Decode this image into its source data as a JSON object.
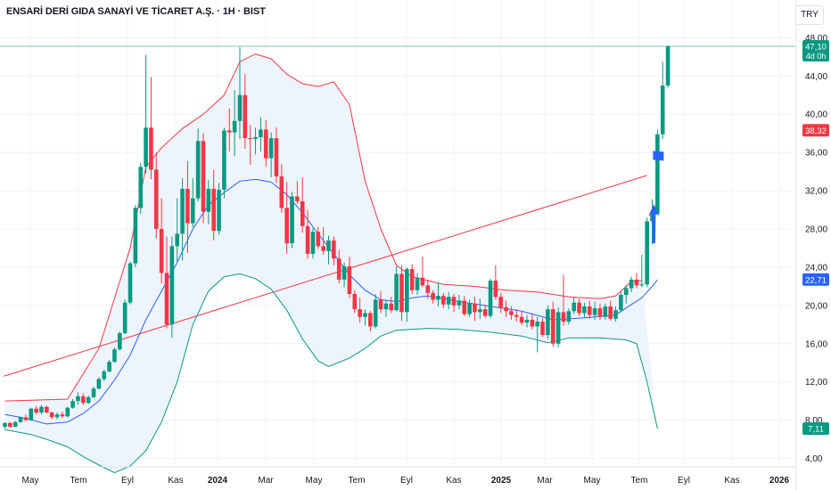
{
  "header": {
    "title": "ENSARİ DERİ GIDA SANAYİ VE TİCARET A.Ş. · 1H · BIST",
    "currency": "TRY"
  },
  "chart_data": {
    "type": "candlestick",
    "x_tick_labels": [
      "May",
      "Tem",
      "Eyl",
      "Kas",
      "2024",
      "Mar",
      "May",
      "Tem",
      "Eyl",
      "Kas",
      "2025",
      "Mar",
      "May",
      "Tem",
      "Eyl",
      "Kas",
      "2026"
    ],
    "y_tick_labels": [
      "4,00",
      "8,00",
      "12,00",
      "16,00",
      "20,00",
      "24,00",
      "28,00",
      "32,00",
      "36,00",
      "40,00",
      "44,00",
      "48,00"
    ],
    "ylim": [
      3,
      49
    ],
    "price_labels": [
      {
        "text": "47,10",
        "sub": "4d 0h",
        "value": 47.1,
        "color": "#089981"
      },
      {
        "text": "38,32",
        "value": 38.32,
        "color": "#f23645"
      },
      {
        "text": "22,71",
        "value": 22.71,
        "color": "#2962ff"
      },
      {
        "text": "7,11",
        "value": 7.11,
        "color": "#089981"
      }
    ],
    "colors": {
      "up": "#089981",
      "down": "#f23645",
      "upper_band": "#f23645",
      "middle_band": "#2962ff",
      "lower_band": "#089981",
      "band_fill": "#eef4fc",
      "trendline": "#f23645",
      "marker": "#2962ff"
    },
    "candles": [
      [
        7.3,
        7.8,
        7.1,
        7.7
      ],
      [
        7.7,
        7.8,
        7.2,
        7.3
      ],
      [
        7.3,
        7.9,
        7.3,
        7.8
      ],
      [
        7.8,
        8.4,
        7.7,
        8.3
      ],
      [
        8.3,
        8.6,
        7.9,
        8.0
      ],
      [
        8.0,
        9.3,
        7.9,
        9.2
      ],
      [
        9.2,
        9.5,
        8.6,
        8.8
      ],
      [
        8.8,
        9.6,
        8.6,
        9.4
      ],
      [
        9.4,
        9.5,
        8.7,
        8.8
      ],
      [
        8.8,
        8.9,
        8.1,
        8.3
      ],
      [
        8.3,
        8.8,
        8.1,
        8.6
      ],
      [
        8.6,
        8.9,
        8.2,
        8.4
      ],
      [
        8.4,
        9.4,
        8.3,
        9.3
      ],
      [
        9.3,
        10.2,
        9.2,
        10.0
      ],
      [
        10.0,
        10.9,
        9.6,
        10.5
      ],
      [
        10.5,
        10.8,
        9.6,
        9.8
      ],
      [
        9.8,
        10.6,
        9.7,
        10.4
      ],
      [
        10.4,
        11.5,
        10.3,
        11.3
      ],
      [
        11.3,
        12.5,
        11.2,
        12.3
      ],
      [
        12.3,
        13.3,
        12.1,
        13.1
      ],
      [
        13.1,
        14.3,
        13.0,
        14.1
      ],
      [
        14.1,
        15.6,
        14.0,
        15.4
      ],
      [
        15.4,
        17.3,
        15.3,
        17.1
      ],
      [
        17.1,
        20.6,
        17.0,
        20.3
      ],
      [
        20.3,
        24.6,
        20.1,
        24.4
      ],
      [
        24.4,
        30.5,
        24.0,
        30.2
      ],
      [
        30.2,
        34.9,
        29.6,
        34.5
      ],
      [
        34.5,
        46.2,
        33.8,
        38.6
      ],
      [
        38.6,
        43.9,
        33.2,
        34.2
      ],
      [
        34.2,
        36.0,
        27.0,
        28.0
      ],
      [
        28.0,
        31.2,
        22.3,
        23.4
      ],
      [
        23.4,
        27.2,
        17.6,
        18.0
      ],
      [
        18.0,
        27.2,
        16.6,
        26.2
      ],
      [
        26.2,
        31.2,
        24.6,
        27.5
      ],
      [
        27.5,
        33.3,
        24.7,
        32.2
      ],
      [
        32.2,
        35.1,
        25.5,
        28.6
      ],
      [
        28.6,
        33.3,
        28.2,
        31.2
      ],
      [
        31.2,
        38.5,
        30.9,
        37.2
      ],
      [
        37.2,
        38.0,
        28.6,
        29.8
      ],
      [
        29.8,
        33.1,
        28.5,
        32.2
      ],
      [
        32.2,
        34.2,
        26.8,
        27.8
      ],
      [
        27.8,
        32.8,
        27.4,
        32.1
      ],
      [
        32.1,
        38.6,
        31.2,
        38.3
      ],
      [
        38.3,
        40.6,
        36.1,
        38.1
      ],
      [
        38.1,
        42.5,
        35.6,
        39.3
      ],
      [
        39.3,
        47.0,
        37.4,
        42.0
      ],
      [
        42.0,
        44.2,
        36.4,
        37.5
      ],
      [
        37.5,
        38.9,
        34.7,
        37.4
      ],
      [
        37.4,
        38.6,
        35.8,
        37.6
      ],
      [
        37.6,
        39.7,
        36.1,
        38.4
      ],
      [
        38.4,
        39.4,
        34.5,
        35.4
      ],
      [
        35.4,
        38.1,
        33.4,
        37.5
      ],
      [
        37.5,
        38.6,
        32.8,
        33.5
      ],
      [
        33.5,
        34.8,
        29.7,
        30.2
      ],
      [
        30.2,
        32.9,
        25.4,
        26.5
      ],
      [
        26.5,
        31.9,
        26.0,
        31.4
      ],
      [
        31.4,
        33.0,
        30.6,
        30.9
      ],
      [
        30.9,
        33.4,
        27.6,
        28.3
      ],
      [
        28.3,
        30.0,
        24.9,
        25.4
      ],
      [
        25.4,
        28.1,
        24.9,
        27.7
      ],
      [
        27.7,
        28.2,
        25.9,
        26.2
      ],
      [
        26.2,
        28.2,
        25.3,
        25.7
      ],
      [
        25.7,
        27.3,
        24.3,
        26.8
      ],
      [
        26.8,
        27.2,
        24.2,
        24.9
      ],
      [
        24.9,
        25.8,
        22.3,
        22.7
      ],
      [
        22.7,
        24.5,
        21.9,
        24.1
      ],
      [
        24.1,
        25.1,
        20.8,
        21.2
      ],
      [
        21.2,
        21.6,
        19.2,
        19.6
      ],
      [
        19.6,
        20.8,
        18.2,
        18.8
      ],
      [
        18.8,
        19.6,
        17.9,
        19.2
      ],
      [
        19.2,
        19.4,
        17.3,
        17.8
      ],
      [
        17.8,
        21.2,
        17.6,
        20.6
      ],
      [
        20.6,
        21.5,
        19.2,
        19.6
      ],
      [
        19.6,
        20.5,
        18.8,
        20.2
      ],
      [
        20.2,
        20.9,
        19.2,
        19.5
      ],
      [
        19.5,
        24.1,
        19.4,
        23.3
      ],
      [
        23.3,
        24.2,
        18.4,
        19.3
      ],
      [
        19.3,
        24.0,
        18.3,
        23.8
      ],
      [
        23.8,
        24.3,
        21.2,
        21.6
      ],
      [
        21.6,
        23.4,
        21.1,
        22.9
      ],
      [
        22.9,
        25.1,
        21.9,
        22.1
      ],
      [
        22.1,
        22.7,
        20.7,
        21.3
      ],
      [
        21.3,
        21.6,
        20.2,
        20.6
      ],
      [
        20.6,
        22.4,
        19.9,
        21.0
      ],
      [
        21.0,
        21.3,
        19.7,
        20.1
      ],
      [
        20.1,
        21.4,
        19.6,
        20.9
      ],
      [
        20.9,
        21.2,
        19.3,
        20.0
      ],
      [
        20.0,
        21.1,
        19.6,
        20.5
      ],
      [
        20.5,
        21.0,
        18.9,
        19.1
      ],
      [
        19.1,
        20.6,
        18.8,
        20.2
      ],
      [
        20.2,
        20.9,
        18.4,
        19.3
      ],
      [
        19.3,
        20.7,
        18.6,
        19.6
      ],
      [
        19.6,
        20.1,
        18.7,
        18.9
      ],
      [
        18.9,
        22.8,
        18.7,
        22.6
      ],
      [
        22.6,
        24.2,
        20.6,
        20.9
      ],
      [
        20.9,
        21.3,
        19.2,
        19.8
      ],
      [
        19.8,
        20.5,
        18.8,
        19.4
      ],
      [
        19.4,
        19.9,
        18.5,
        19.0
      ],
      [
        19.0,
        19.6,
        18.3,
        18.8
      ],
      [
        18.8,
        19.4,
        17.9,
        18.2
      ],
      [
        18.2,
        19.0,
        17.7,
        18.5
      ],
      [
        18.5,
        19.2,
        17.5,
        17.8
      ],
      [
        17.8,
        18.8,
        15.1,
        18.3
      ],
      [
        18.3,
        18.7,
        16.7,
        16.9
      ],
      [
        16.9,
        20.0,
        16.5,
        19.6
      ],
      [
        19.6,
        20.4,
        15.7,
        16.0
      ],
      [
        16.0,
        19.8,
        15.6,
        19.3
      ],
      [
        19.3,
        23.2,
        17.9,
        18.3
      ],
      [
        18.3,
        19.7,
        18.0,
        19.4
      ],
      [
        19.4,
        20.9,
        19.1,
        20.3
      ],
      [
        20.3,
        20.7,
        18.9,
        19.2
      ],
      [
        19.2,
        20.3,
        18.7,
        19.9
      ],
      [
        19.9,
        20.5,
        18.6,
        19.0
      ],
      [
        19.0,
        20.4,
        18.5,
        19.7
      ],
      [
        19.7,
        20.2,
        18.5,
        18.8
      ],
      [
        18.8,
        20.2,
        18.5,
        19.9
      ],
      [
        19.9,
        20.5,
        18.4,
        18.6
      ],
      [
        18.6,
        19.9,
        18.3,
        19.5
      ],
      [
        19.5,
        21.4,
        19.3,
        21.1
      ],
      [
        21.1,
        22.1,
        20.2,
        21.8
      ],
      [
        21.8,
        23.0,
        21.4,
        22.7
      ],
      [
        22.7,
        23.4,
        21.8,
        22.1
      ],
      [
        22.1,
        25.3,
        21.9,
        22.2
      ],
      [
        22.2,
        29.2,
        21.9,
        28.8
      ],
      [
        28.8,
        31.1,
        26.4,
        29.6
      ],
      [
        29.6,
        38.4,
        29.5,
        37.9
      ],
      [
        37.9,
        45.5,
        37.4,
        43.0
      ],
      [
        43.0,
        47.2,
        42.8,
        47.1
      ]
    ],
    "bb_upper": [
      [
        0,
        10.0
      ],
      [
        12,
        10.2
      ],
      [
        18,
        15.5
      ],
      [
        24,
        26.0
      ],
      [
        27,
        34.5
      ],
      [
        30,
        36.5
      ],
      [
        34,
        38.5
      ],
      [
        38,
        40.0
      ],
      [
        42,
        42.0
      ],
      [
        45,
        45.5
      ],
      [
        48,
        46.3
      ],
      [
        51,
        45.8
      ],
      [
        54,
        44.2
      ],
      [
        57,
        43.2
      ],
      [
        60,
        42.9
      ],
      [
        63,
        43.4
      ],
      [
        66,
        41.0
      ],
      [
        69,
        33.0
      ],
      [
        72,
        28.0
      ],
      [
        75,
        24.2
      ],
      [
        78,
        23.0
      ],
      [
        84,
        22.2
      ],
      [
        90,
        22.0
      ],
      [
        96,
        21.6
      ],
      [
        102,
        21.4
      ],
      [
        108,
        20.9
      ],
      [
        114,
        20.7
      ],
      [
        117,
        21.0
      ],
      [
        120,
        22.5
      ],
      [
        122,
        22.6
      ]
    ],
    "bb_middle": [
      [
        0,
        8.6
      ],
      [
        4,
        8.2
      ],
      [
        8,
        7.6
      ],
      [
        12,
        7.8
      ],
      [
        15,
        8.7
      ],
      [
        18,
        10.0
      ],
      [
        21,
        12.2
      ],
      [
        24,
        14.8
      ],
      [
        27,
        18.5
      ],
      [
        30,
        21.5
      ],
      [
        33,
        24.5
      ],
      [
        36,
        28.0
      ],
      [
        39,
        30.5
      ],
      [
        42,
        31.8
      ],
      [
        45,
        33.0
      ],
      [
        48,
        33.2
      ],
      [
        51,
        32.9
      ],
      [
        54,
        31.6
      ],
      [
        57,
        29.7
      ],
      [
        60,
        27.5
      ],
      [
        63,
        25.4
      ],
      [
        66,
        23.2
      ],
      [
        69,
        21.6
      ],
      [
        72,
        20.6
      ],
      [
        75,
        20.4
      ],
      [
        78,
        20.8
      ],
      [
        81,
        21.0
      ],
      [
        87,
        20.4
      ],
      [
        93,
        19.9
      ],
      [
        99,
        19.4
      ],
      [
        105,
        18.5
      ],
      [
        111,
        18.7
      ],
      [
        117,
        19.0
      ],
      [
        120,
        20.1
      ],
      [
        122,
        20.8
      ],
      [
        124,
        22.0
      ],
      [
        125,
        22.7
      ]
    ],
    "bb_lower": [
      [
        0,
        7.0
      ],
      [
        5,
        6.5
      ],
      [
        8,
        6.0
      ],
      [
        12,
        5.2
      ],
      [
        15,
        4.2
      ],
      [
        18,
        3.3
      ],
      [
        21,
        2.5
      ],
      [
        24,
        3.2
      ],
      [
        27,
        4.8
      ],
      [
        30,
        7.8
      ],
      [
        33,
        12.0
      ],
      [
        36,
        18.0
      ],
      [
        39,
        21.5
      ],
      [
        42,
        23.0
      ],
      [
        45,
        23.3
      ],
      [
        48,
        22.8
      ],
      [
        51,
        21.7
      ],
      [
        54,
        19.5
      ],
      [
        57,
        16.5
      ],
      [
        60,
        14.2
      ],
      [
        62,
        13.6
      ],
      [
        66,
        14.5
      ],
      [
        69,
        15.5
      ],
      [
        72,
        16.8
      ],
      [
        75,
        17.4
      ],
      [
        81,
        17.6
      ],
      [
        87,
        17.5
      ],
      [
        93,
        17.2
      ],
      [
        99,
        16.8
      ],
      [
        104,
        16.1
      ],
      [
        108,
        16.6
      ],
      [
        114,
        16.6
      ],
      [
        119,
        16.4
      ],
      [
        121,
        16.0
      ],
      [
        123,
        12.0
      ],
      [
        125,
        7.1
      ]
    ],
    "trendline": [
      [
        -0.2,
        12.6
      ],
      [
        123.0,
        33.6
      ]
    ],
    "arrow_marker": {
      "x": 125,
      "y_from": 26.5,
      "y_to": 30.6
    },
    "flag_marker": {
      "x": 125,
      "y": 35.7
    }
  }
}
